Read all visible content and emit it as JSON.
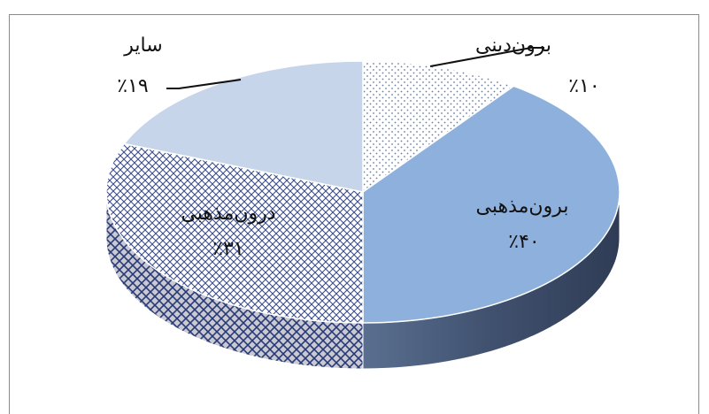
{
  "chart_data": {
    "type": "pie",
    "style": "3d",
    "title": "",
    "slices": [
      {
        "label": "برون‌دینی",
        "value": 10,
        "value_label": "٪۱۰",
        "fill": "dots",
        "color": "#ffffff",
        "pattern_color": "#6a7fa0"
      },
      {
        "label": "برون‌مذهبی",
        "value": 40,
        "value_label": "٪۴۰",
        "fill": "solid",
        "color": "#8eb0dd",
        "side_color": "#3b4d69"
      },
      {
        "label": "درون‌مذهبی",
        "value": 31,
        "value_label": "٪۳۱",
        "fill": "crosshatch",
        "color": "#ffffff",
        "pattern_color": "#3b4d8a"
      },
      {
        "label": "سایر",
        "value": 19,
        "value_label": "٪۱۹",
        "fill": "solid",
        "color": "#c6d5ea",
        "side_color": "#9db0cc"
      }
    ]
  }
}
